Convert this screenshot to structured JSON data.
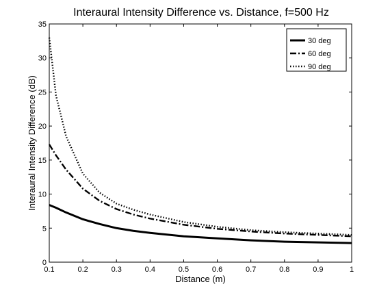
{
  "chart_data": {
    "type": "line",
    "title": "Interaural Intensity Difference vs. Distance, f=500 Hz",
    "xlabel": "Distance (m)",
    "ylabel": "Interaural Intensity Difference (dB)",
    "xlim": [
      0.1,
      1
    ],
    "ylim": [
      0,
      35
    ],
    "x_ticks": [
      0.1,
      0.2,
      0.3,
      0.4,
      0.5,
      0.6,
      0.7,
      0.8,
      0.9,
      1
    ],
    "x_tick_labels": [
      "0.1",
      "0.2",
      "0.3",
      "0.4",
      "0.5",
      "0.6",
      "0.7",
      "0.8",
      "0.9",
      "1"
    ],
    "y_ticks": [
      0,
      5,
      10,
      15,
      20,
      25,
      30,
      35
    ],
    "y_tick_labels": [
      "0",
      "5",
      "10",
      "15",
      "20",
      "25",
      "30",
      "35"
    ],
    "grid": false,
    "legend_position": "top-right",
    "x": [
      0.1,
      0.12,
      0.15,
      0.2,
      0.25,
      0.3,
      0.35,
      0.4,
      0.5,
      0.6,
      0.7,
      0.8,
      0.9,
      1.0
    ],
    "series": [
      {
        "name": "30 deg",
        "style": "solid",
        "color": "#000000",
        "values": [
          8.4,
          8.0,
          7.3,
          6.3,
          5.6,
          5.0,
          4.6,
          4.3,
          3.8,
          3.5,
          3.2,
          3.0,
          2.9,
          2.8
        ]
      },
      {
        "name": "60 deg",
        "style": "dashdot",
        "color": "#000000",
        "values": [
          17.3,
          15.7,
          13.6,
          10.8,
          9.0,
          7.8,
          7.0,
          6.4,
          5.5,
          4.9,
          4.5,
          4.2,
          4.0,
          3.8
        ]
      },
      {
        "name": "90 deg",
        "style": "dotted",
        "color": "#000000",
        "values": [
          33.0,
          24.5,
          18.5,
          13.0,
          10.2,
          8.6,
          7.7,
          7.0,
          5.9,
          5.2,
          4.7,
          4.4,
          4.2,
          4.0
        ]
      }
    ]
  }
}
